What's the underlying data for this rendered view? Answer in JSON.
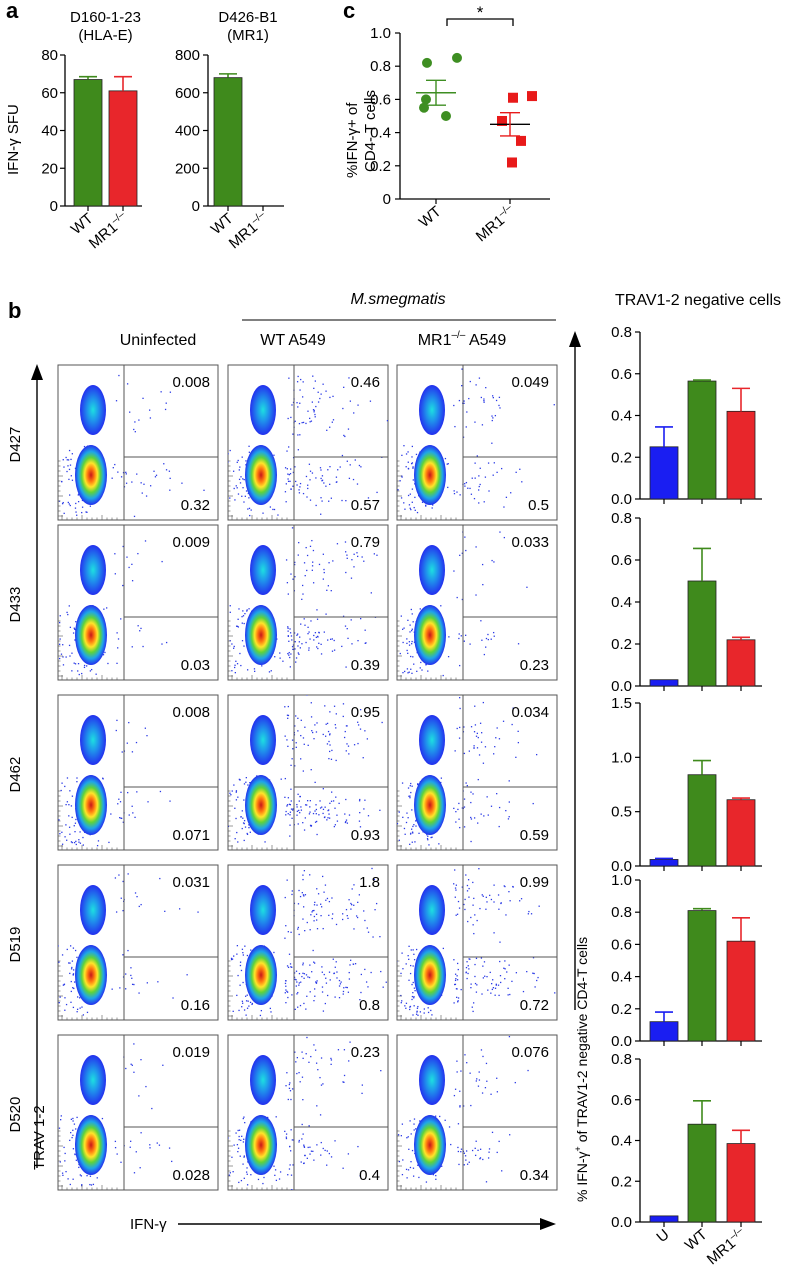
{
  "panel_letters": {
    "a": "a",
    "b": "b",
    "c": "c"
  },
  "colors": {
    "green": "#3f8a1c",
    "red": "#e8262b",
    "blue": "#1a1ef2",
    "c_green": "#3e8e22",
    "c_red": "#e81a1a"
  },
  "panel_b_headers": {
    "species": "M.smegmatis",
    "col_uninfected": "Uninfected",
    "col_wt": "WT A549",
    "col_mr1_prefix": "MR1",
    "col_mr1_sup": "–/–",
    "col_mr1_suffix": " A549",
    "right_title": "TRAV1-2 negative cells",
    "y_axis_label": "TRAV 1-2",
    "x_axis_label": "IFN-γ",
    "bar_y_label_prefix": "% IFN-γ",
    "bar_y_label_sup": "+",
    "bar_y_label_suffix": " of TRAV1-2 negative CD4-T cells"
  },
  "flow_rows": [
    {
      "donor": "D427",
      "quadrants": [
        [
          "0.008",
          "0.32"
        ],
        [
          "0.46",
          "0.57"
        ],
        [
          "0.049",
          "0.5"
        ]
      ]
    },
    {
      "donor": "D433",
      "quadrants": [
        [
          "0.009",
          "0.03"
        ],
        [
          "0.79",
          "0.39"
        ],
        [
          "0.033",
          "0.23"
        ]
      ]
    },
    {
      "donor": "D462",
      "quadrants": [
        [
          "0.008",
          "0.071"
        ],
        [
          "0.95",
          "0.93"
        ],
        [
          "0.034",
          "0.59"
        ]
      ]
    },
    {
      "donor": "D519",
      "quadrants": [
        [
          "0.031",
          "0.16"
        ],
        [
          "1.8",
          "0.8"
        ],
        [
          "0.99",
          "0.72"
        ]
      ]
    },
    {
      "donor": "D520",
      "quadrants": [
        [
          "0.019",
          "0.028"
        ],
        [
          "0.23",
          "0.4"
        ],
        [
          "0.076",
          "0.34"
        ]
      ]
    }
  ],
  "chart_data": [
    {
      "panel": "a-left",
      "type": "bar",
      "title": "D160-1-23\n(HLA-E)",
      "ylabel": "IFN-γ SFU",
      "categories": [
        "WT",
        "MR1–/–"
      ],
      "values": [
        67,
        61
      ],
      "errors": [
        1.5,
        7.5
      ],
      "colors": [
        "green",
        "red"
      ],
      "ylim": [
        0,
        80
      ],
      "yticks": [
        0,
        20,
        40,
        60,
        80
      ]
    },
    {
      "panel": "a-right",
      "type": "bar",
      "title": "D426-B1\n(MR1)",
      "ylabel": "",
      "categories": [
        "WT",
        "MR1–/–"
      ],
      "values": [
        680,
        0
      ],
      "errors": [
        20,
        0
      ],
      "colors": [
        "green",
        "red"
      ],
      "ylim": [
        0,
        800
      ],
      "yticks": [
        0,
        200,
        400,
        600,
        800
      ]
    },
    {
      "panel": "c",
      "type": "scatter",
      "ylabel": "%IFN-γ+ of\nCD4- T cells",
      "categories": [
        "WT",
        "MR1–/–"
      ],
      "significance": "*",
      "series": [
        {
          "points": [
            0.85,
            0.82,
            0.6,
            0.55,
            0.5
          ],
          "mean": 0.64,
          "sem": 0.075,
          "color": "c_green",
          "marker": "circle"
        },
        {
          "points": [
            0.62,
            0.61,
            0.47,
            0.35,
            0.22
          ],
          "mean": 0.45,
          "sem": 0.07,
          "color": "c_red",
          "marker": "square"
        }
      ],
      "ylim": [
        0,
        1.0
      ],
      "yticks": [
        "0",
        "0.2",
        "0.4",
        "0.6",
        "0.8",
        "1.0"
      ]
    },
    {
      "panel": "b-bars",
      "type": "bar",
      "title": "TRAV1-2 negative cells",
      "categories": [
        "U",
        "WT",
        "MR1–/–"
      ],
      "colors": [
        "blue",
        "green",
        "red"
      ],
      "subplots": [
        {
          "values": [
            0.25,
            0.565,
            0.42
          ],
          "errors": [
            0.095,
            0.005,
            0.11
          ],
          "ylim": [
            0,
            0.8
          ],
          "yticks": [
            "0.0",
            "0.2",
            "0.4",
            "0.6",
            "0.8"
          ]
        },
        {
          "values": [
            0.03,
            0.5,
            0.22
          ],
          "errors": [
            0,
            0.155,
            0.012
          ],
          "ylim": [
            0,
            0.8
          ],
          "yticks": [
            "0.0",
            "0.2",
            "0.4",
            "0.6",
            "0.8"
          ]
        },
        {
          "values": [
            0.06,
            0.84,
            0.61
          ],
          "errors": [
            0.01,
            0.13,
            0.015
          ],
          "ylim": [
            0,
            1.5
          ],
          "yticks": [
            "0.0",
            "0.5",
            "1.0",
            "1.5"
          ]
        },
        {
          "values": [
            0.12,
            0.81,
            0.62
          ],
          "errors": [
            0.06,
            0.012,
            0.145
          ],
          "ylim": [
            0,
            1.0
          ],
          "yticks": [
            "0.0",
            "0.2",
            "0.4",
            "0.6",
            "0.8",
            "1.0"
          ]
        },
        {
          "values": [
            0.03,
            0.48,
            0.385
          ],
          "errors": [
            0,
            0.115,
            0.065
          ],
          "ylim": [
            0,
            0.8
          ],
          "yticks": [
            "0.0",
            "0.2",
            "0.4",
            "0.6",
            "0.8"
          ]
        }
      ]
    }
  ]
}
